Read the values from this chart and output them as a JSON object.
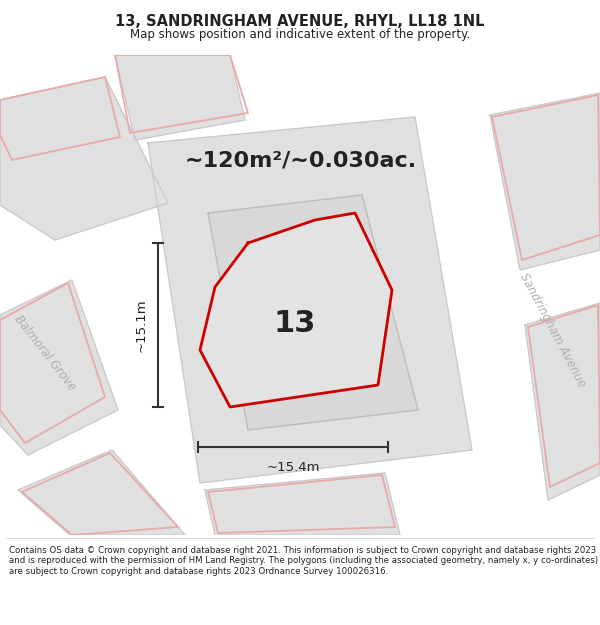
{
  "title": "13, SANDRINGHAM AVENUE, RHYL, LL18 1NL",
  "subtitle": "Map shows position and indicative extent of the property.",
  "area_label": "~120m²/~0.030ac.",
  "number_label": "13",
  "dim_h": "~15.1m",
  "dim_w": "~15.4m",
  "street_left": "Balmoral Grove",
  "street_right": "Sandringham Avenue",
  "footer": "Contains OS data © Crown copyright and database right 2021. This information is subject to Crown copyright and database rights 2023 and is reproduced with the permission of HM Land Registry. The polygons (including the associated geometry, namely x, y co-ordinates) are subject to Crown copyright and database rights 2023 Ordnance Survey 100026316.",
  "bg_color": "#ebebeb",
  "block_fill": "#e0e0e0",
  "block_line": "#c8c8c8",
  "inner_fill": "#d8d8d8",
  "inner_line": "#bbbbbb",
  "red_color": "#cc0000",
  "pink_line": "#e8aaaa",
  "prop_fill": "#e4e4e4",
  "dark_text": "#222222",
  "street_color": "#b0b0b0",
  "dim_color": "#333333",
  "footer_color": "#222222"
}
